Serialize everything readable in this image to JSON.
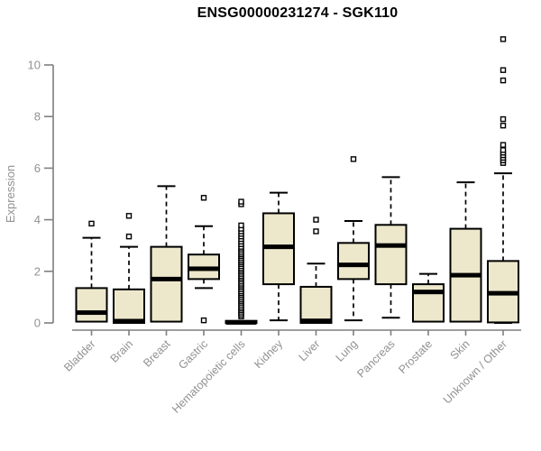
{
  "title": "ENSG00000231274 - SGK110",
  "colors": {
    "box_fill": "#ede8cc",
    "box_border": "#000000",
    "median": "#000000",
    "axis_line": "#7f7f7f",
    "tick_label": "#919191",
    "axis_label": "#919191",
    "title": "#000000",
    "background": "#ffffff"
  },
  "chart_data": {
    "type": "boxplot",
    "title": "ENSG00000231274 - SGK110",
    "xlabel": "",
    "ylabel": "Expression",
    "ylim": [
      0,
      11.2
    ],
    "yticks": [
      0,
      2,
      4,
      6,
      8,
      10
    ],
    "grid": false,
    "legend": false,
    "categories": [
      "Bladder",
      "Brain",
      "Breast",
      "Gastric",
      "Hematopoietic cells",
      "Kidney",
      "Liver",
      "Lung",
      "Pancreas",
      "Prostate",
      "Skin",
      "Unknown / Other"
    ],
    "series": [
      {
        "name": "Bladder",
        "whisker_low": 0.05,
        "q1": 0.05,
        "median": 0.4,
        "q3": 1.35,
        "whisker_high": 3.3,
        "outliers": [
          3.85
        ]
      },
      {
        "name": "Brain",
        "whisker_low": 0.0,
        "q1": 0.0,
        "median": 0.07,
        "q3": 1.3,
        "whisker_high": 2.95,
        "outliers": [
          3.35,
          4.15
        ]
      },
      {
        "name": "Breast",
        "whisker_low": 0.05,
        "q1": 0.05,
        "median": 1.7,
        "q3": 2.95,
        "whisker_high": 5.3,
        "outliers": []
      },
      {
        "name": "Gastric",
        "whisker_low": 1.35,
        "q1": 1.7,
        "median": 2.1,
        "q3": 2.65,
        "whisker_high": 3.75,
        "outliers": [
          4.85,
          0.1
        ]
      },
      {
        "name": "Hematopoietic cells",
        "whisker_low": 0.0,
        "q1": 0.0,
        "median": 0.02,
        "q3": 0.08,
        "whisker_high": 0.08,
        "outliers": [
          0.25,
          0.32,
          0.4,
          0.48,
          0.55,
          0.62,
          0.7,
          0.78,
          0.85,
          0.92,
          1.0,
          1.08,
          1.15,
          1.22,
          1.3,
          1.38,
          1.45,
          1.52,
          1.6,
          1.68,
          1.75,
          1.82,
          1.9,
          1.98,
          2.05,
          2.12,
          2.2,
          2.28,
          2.35,
          2.42,
          2.5,
          2.58,
          2.65,
          2.72,
          2.8,
          2.88,
          2.95,
          3.05,
          3.15,
          3.25,
          3.35,
          3.45,
          3.55,
          3.65,
          3.78,
          4.6,
          4.7
        ]
      },
      {
        "name": "Kidney",
        "whisker_low": 0.1,
        "q1": 1.5,
        "median": 2.95,
        "q3": 4.25,
        "whisker_high": 5.05,
        "outliers": []
      },
      {
        "name": "Liver",
        "whisker_low": 0.0,
        "q1": 0.0,
        "median": 0.08,
        "q3": 1.4,
        "whisker_high": 2.3,
        "outliers": [
          3.55,
          4.0
        ]
      },
      {
        "name": "Lung",
        "whisker_low": 0.1,
        "q1": 1.7,
        "median": 2.25,
        "q3": 3.1,
        "whisker_high": 3.95,
        "outliers": [
          6.35
        ]
      },
      {
        "name": "Pancreas",
        "whisker_low": 0.2,
        "q1": 1.5,
        "median": 3.0,
        "q3": 3.8,
        "whisker_high": 5.65,
        "outliers": []
      },
      {
        "name": "Prostate",
        "whisker_low": 0.05,
        "q1": 0.05,
        "median": 1.2,
        "q3": 1.5,
        "whisker_high": 1.9,
        "outliers": []
      },
      {
        "name": "Skin",
        "whisker_low": 0.05,
        "q1": 0.05,
        "median": 1.85,
        "q3": 3.65,
        "whisker_high": 5.45,
        "outliers": []
      },
      {
        "name": "Unknown / Other",
        "whisker_low": 0.0,
        "q1": 0.02,
        "median": 1.15,
        "q3": 2.4,
        "whisker_high": 5.8,
        "outliers": [
          6.2,
          6.3,
          6.4,
          6.5,
          6.6,
          6.7,
          6.9,
          7.65,
          7.9,
          9.4,
          9.8,
          11.0
        ]
      }
    ]
  }
}
